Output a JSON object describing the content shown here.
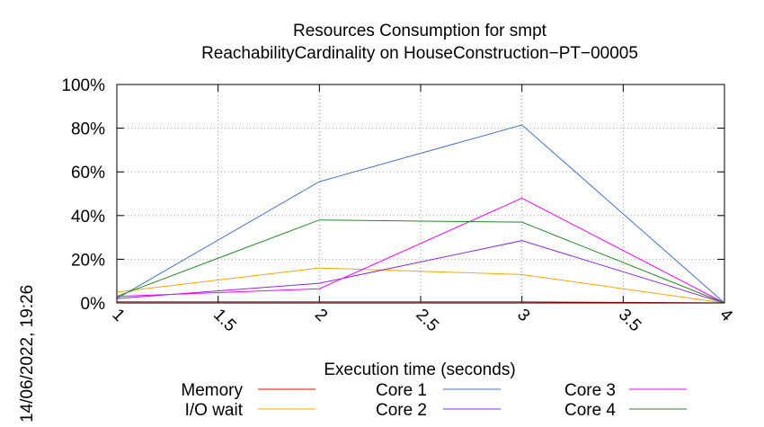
{
  "timestamp": "14/06/2022, 19:26",
  "chart_data": {
    "type": "line",
    "title": "Resources Consumption for smpt",
    "subtitle": "ReachabilityCardinality on HouseConstruction−PT−00005",
    "xlabel": "Execution time (seconds)",
    "ylabel": "",
    "xlim": [
      1,
      4
    ],
    "ylim": [
      0,
      100
    ],
    "x_ticks": [
      "1",
      "1.5",
      "2",
      "2.5",
      "3",
      "3.5",
      "4"
    ],
    "y_ticks": [
      "0%",
      "20%",
      "40%",
      "60%",
      "80%",
      "100%"
    ],
    "grid": true,
    "legend_position": "bottom",
    "x": [
      1,
      2,
      3,
      4
    ],
    "series": [
      {
        "name": "Memory",
        "color": "#ff0000",
        "values": [
          0.5,
          0.5,
          0.5,
          0
        ]
      },
      {
        "name": "I/O wait",
        "color": "#ffa500",
        "values": [
          5,
          16,
          13,
          0
        ]
      },
      {
        "name": "Core 1",
        "color": "#4472c4",
        "values": [
          2,
          55.5,
          81.5,
          0
        ]
      },
      {
        "name": "Core 2",
        "color": "#8a2be2",
        "values": [
          2,
          9,
          28.5,
          0
        ]
      },
      {
        "name": "Core 3",
        "color": "#ff00ff",
        "values": [
          3,
          6.5,
          48,
          0
        ]
      },
      {
        "name": "Core 4",
        "color": "#228b22",
        "values": [
          3,
          38,
          37,
          0
        ]
      }
    ]
  }
}
